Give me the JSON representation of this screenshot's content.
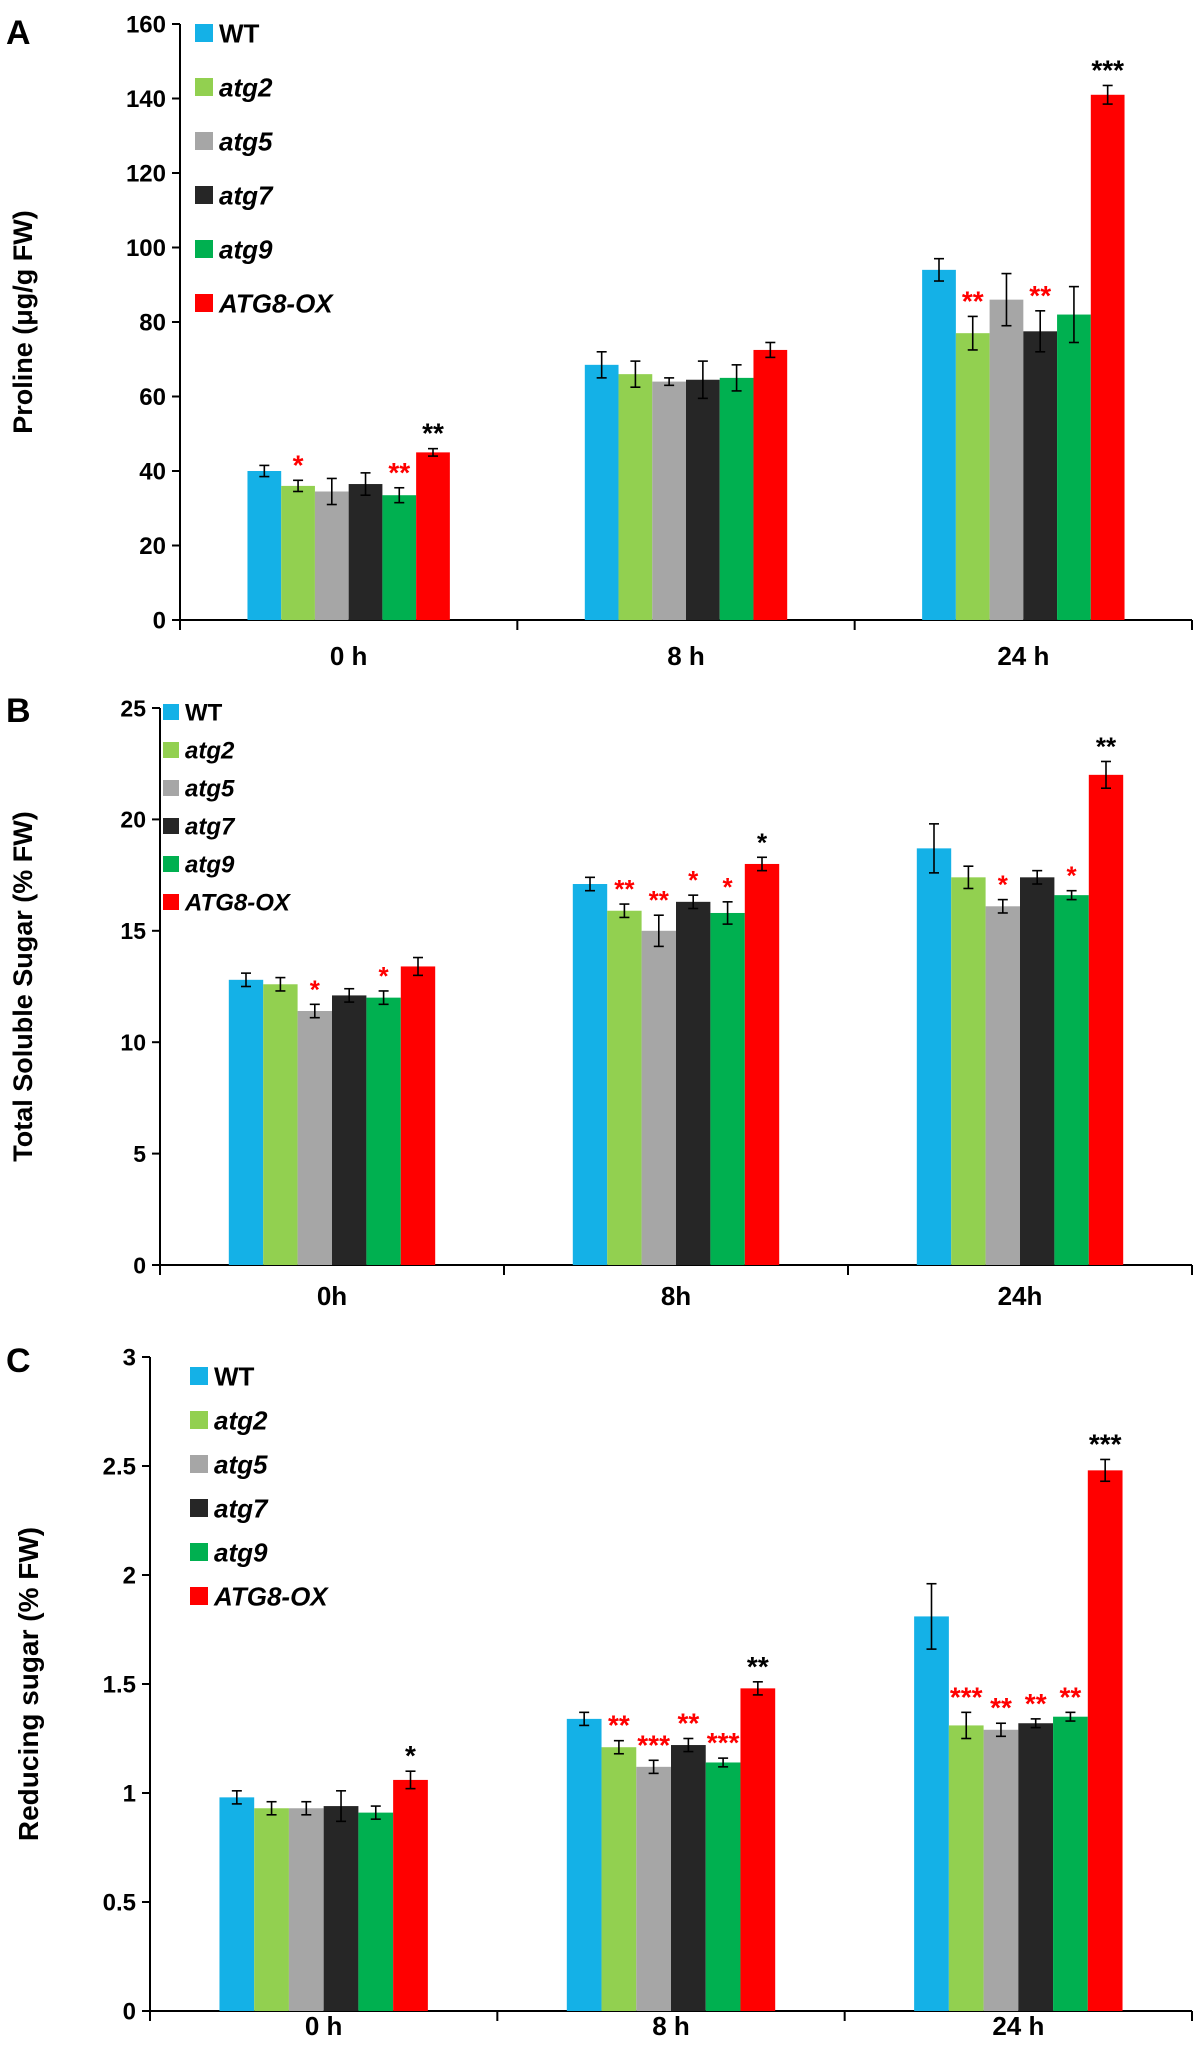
{
  "colors": {
    "WT": "#14B1E7",
    "atg2": "#92D050",
    "atg5": "#A6A6A6",
    "atg7": "#262626",
    "atg9": "#00B050",
    "ATG8-OX": "#FF0000",
    "sig_red": "#FF0000",
    "sig_black": "#000000"
  },
  "chart_data": [
    {
      "type": "bar",
      "panel": "A",
      "title": "",
      "ylabel": "Proline (μg/g FW)",
      "xlabel": "",
      "ylim": [
        0,
        160
      ],
      "yticks": [
        "0",
        "20",
        "40",
        "60",
        "80",
        "100",
        "120",
        "140",
        "160"
      ],
      "categories": [
        "0 h",
        "8 h",
        "24 h"
      ],
      "legend_position": "top-left",
      "series": [
        {
          "name": "WT",
          "italic": false,
          "values": [
            40,
            68.5,
            94
          ],
          "errors": [
            1.5,
            3.5,
            3
          ],
          "sig": [
            "",
            "",
            ""
          ],
          "sig_color": [
            "",
            "",
            ""
          ]
        },
        {
          "name": "atg2",
          "italic": true,
          "values": [
            36,
            66,
            77
          ],
          "errors": [
            1.5,
            3.5,
            4.5
          ],
          "sig": [
            "*",
            "",
            "**"
          ],
          "sig_color": [
            "red",
            "",
            "red"
          ]
        },
        {
          "name": "atg5",
          "italic": true,
          "values": [
            34.5,
            64,
            86
          ],
          "errors": [
            3.5,
            1,
            7
          ],
          "sig": [
            "",
            "",
            ""
          ],
          "sig_color": [
            "",
            "",
            ""
          ]
        },
        {
          "name": "atg7",
          "italic": true,
          "values": [
            36.5,
            64.5,
            77.5
          ],
          "errors": [
            3,
            5,
            5.5
          ],
          "sig": [
            "",
            "",
            "**"
          ],
          "sig_color": [
            "",
            "",
            "red"
          ]
        },
        {
          "name": "atg9",
          "italic": true,
          "values": [
            33.5,
            65,
            82
          ],
          "errors": [
            2,
            3.5,
            7.5
          ],
          "sig": [
            "**",
            "",
            ""
          ],
          "sig_color": [
            "red",
            "",
            ""
          ]
        },
        {
          "name": "ATG8-OX",
          "italic": true,
          "values": [
            45,
            72.5,
            141
          ],
          "errors": [
            1,
            2,
            2.5
          ],
          "sig": [
            "**",
            "",
            "***"
          ],
          "sig_color": [
            "black",
            "",
            "black"
          ]
        }
      ]
    },
    {
      "type": "bar",
      "panel": "B",
      "title": "",
      "ylabel": "Total Soluble Sugar (% FW)",
      "xlabel": "",
      "ylim": [
        0,
        25
      ],
      "yticks": [
        "0",
        "5",
        "10",
        "15",
        "20",
        "25"
      ],
      "categories": [
        "0h",
        "8h",
        "24h"
      ],
      "legend_position": "top-left",
      "series": [
        {
          "name": "WT",
          "italic": false,
          "values": [
            12.8,
            17.1,
            18.7
          ],
          "errors": [
            0.3,
            0.3,
            1.1
          ],
          "sig": [
            "",
            "",
            ""
          ],
          "sig_color": [
            "",
            "",
            ""
          ]
        },
        {
          "name": "atg2",
          "italic": true,
          "values": [
            12.6,
            15.9,
            17.4
          ],
          "errors": [
            0.3,
            0.3,
            0.5
          ],
          "sig": [
            "",
            "**",
            ""
          ],
          "sig_color": [
            "",
            "red",
            ""
          ]
        },
        {
          "name": "atg5",
          "italic": true,
          "values": [
            11.4,
            15,
            16.1
          ],
          "errors": [
            0.3,
            0.7,
            0.3
          ],
          "sig": [
            "*",
            "**",
            "*"
          ],
          "sig_color": [
            "red",
            "red",
            "red"
          ]
        },
        {
          "name": "atg7",
          "italic": true,
          "values": [
            12.1,
            16.3,
            17.4
          ],
          "errors": [
            0.3,
            0.3,
            0.3
          ],
          "sig": [
            "",
            "*",
            ""
          ],
          "sig_color": [
            "",
            "red",
            ""
          ]
        },
        {
          "name": "atg9",
          "italic": true,
          "values": [
            12,
            15.8,
            16.6
          ],
          "errors": [
            0.3,
            0.5,
            0.2
          ],
          "sig": [
            "*",
            "*",
            "*"
          ],
          "sig_color": [
            "red",
            "red",
            "red"
          ]
        },
        {
          "name": "ATG8-OX",
          "italic": true,
          "values": [
            13.4,
            18,
            22
          ],
          "errors": [
            0.4,
            0.3,
            0.6
          ],
          "sig": [
            "",
            "*",
            "**"
          ],
          "sig_color": [
            "",
            "black",
            "black"
          ]
        }
      ]
    },
    {
      "type": "bar",
      "panel": "C",
      "title": "",
      "ylabel": "Reducing sugar (% FW)",
      "xlabel": "",
      "ylim": [
        0,
        3
      ],
      "yticks": [
        "0",
        "0.5",
        "1",
        "1.5",
        "2",
        "2.5",
        "3"
      ],
      "categories": [
        "0 h",
        "8 h",
        "24 h"
      ],
      "legend_position": "top-left",
      "series": [
        {
          "name": "WT",
          "italic": false,
          "values": [
            0.98,
            1.34,
            1.81
          ],
          "errors": [
            0.03,
            0.03,
            0.15
          ],
          "sig": [
            "",
            "",
            ""
          ],
          "sig_color": [
            "",
            "",
            ""
          ]
        },
        {
          "name": "atg2",
          "italic": true,
          "values": [
            0.93,
            1.21,
            1.31
          ],
          "errors": [
            0.03,
            0.03,
            0.06
          ],
          "sig": [
            "",
            "**",
            "***"
          ],
          "sig_color": [
            "",
            "red",
            "red"
          ]
        },
        {
          "name": "atg5",
          "italic": true,
          "values": [
            0.93,
            1.12,
            1.29
          ],
          "errors": [
            0.03,
            0.03,
            0.03
          ],
          "sig": [
            "",
            "***",
            "**"
          ],
          "sig_color": [
            "",
            "red",
            "red"
          ]
        },
        {
          "name": "atg7",
          "italic": true,
          "values": [
            0.94,
            1.22,
            1.32
          ],
          "errors": [
            0.07,
            0.03,
            0.02
          ],
          "sig": [
            "",
            "**",
            "**"
          ],
          "sig_color": [
            "",
            "red",
            "red"
          ]
        },
        {
          "name": "atg9",
          "italic": true,
          "values": [
            0.91,
            1.14,
            1.35
          ],
          "errors": [
            0.03,
            0.02,
            0.02
          ],
          "sig": [
            "",
            "***",
            "**"
          ],
          "sig_color": [
            "",
            "red",
            "red"
          ]
        },
        {
          "name": "ATG8-OX",
          "italic": true,
          "values": [
            1.06,
            1.48,
            2.48
          ],
          "errors": [
            0.04,
            0.03,
            0.05
          ],
          "sig": [
            "*",
            "**",
            "***"
          ],
          "sig_color": [
            "black",
            "black",
            "black"
          ]
        }
      ]
    }
  ]
}
